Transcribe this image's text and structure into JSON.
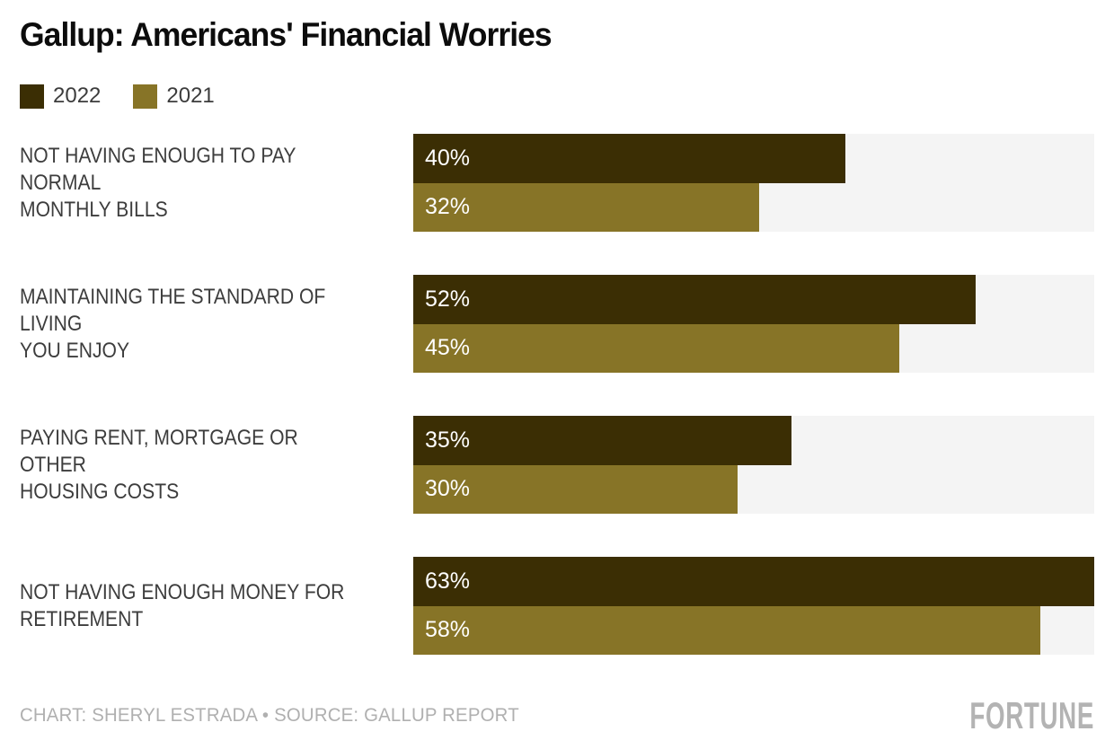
{
  "page": {
    "title": "Gallup: Americans' Financial Worries"
  },
  "legend": {
    "items": [
      {
        "label": "2022",
        "color": "#3b2e04"
      },
      {
        "label": "2021",
        "color": "#877427"
      }
    ]
  },
  "chart_data": {
    "type": "bar",
    "orientation": "horizontal",
    "title": "Gallup: Americans' Financial Worries",
    "categories": [
      "NOT HAVING ENOUGH TO PAY NORMAL\nMONTHLY BILLS",
      "MAINTAINING THE STANDARD OF LIVING\nYOU ENJOY",
      "PAYING RENT, MORTGAGE OR OTHER\nHOUSING COSTS",
      "NOT HAVING ENOUGH MONEY FOR\nRETIREMENT"
    ],
    "series": [
      {
        "name": "2022",
        "color": "#3b2e04",
        "values": [
          40,
          52,
          35,
          63
        ]
      },
      {
        "name": "2021",
        "color": "#877427",
        "values": [
          32,
          45,
          30,
          58
        ]
      }
    ],
    "value_suffix": "%",
    "value_label_color": "#ffffff",
    "xlim": [
      0,
      63
    ],
    "grid": false,
    "legend_position": "top-left",
    "track_color": "#f4f4f4"
  },
  "footer": {
    "credit": "CHART: SHERYL ESTRADA • SOURCE: GALLUP REPORT",
    "brand": "FORTUNE"
  }
}
